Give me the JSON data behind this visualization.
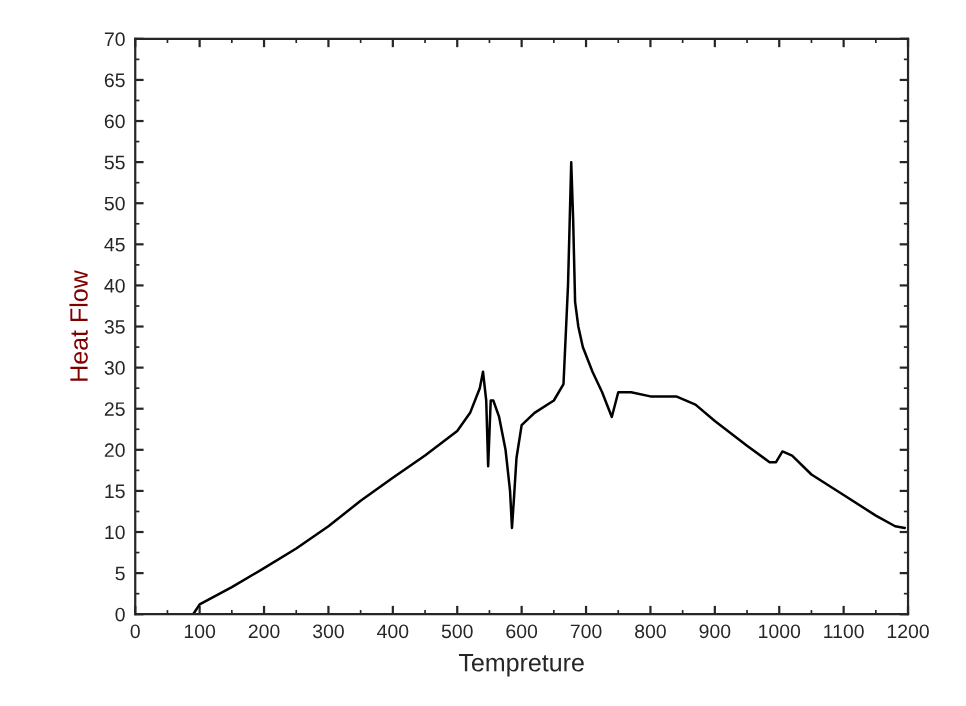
{
  "chart_data": {
    "type": "line",
    "xlabel": "Tempreture",
    "ylabel": "Heat Flow",
    "series": [
      {
        "color": "#000000",
        "x": [
          90,
          100,
          150,
          200,
          250,
          300,
          350,
          400,
          450,
          500,
          520,
          535,
          540,
          545,
          548,
          552,
          556,
          565,
          575,
          582,
          585,
          588,
          592,
          600,
          620,
          650,
          665,
          672,
          677,
          680,
          683,
          688,
          695,
          710,
          725,
          740,
          750,
          770,
          800,
          840,
          870,
          900,
          950,
          985,
          995,
          1005,
          1020,
          1050,
          1100,
          1150,
          1180,
          1195
        ],
        "values": [
          0,
          1.2,
          3.3,
          5.6,
          8,
          10.7,
          13.8,
          16.6,
          19.3,
          22.3,
          24.5,
          27.5,
          29.5,
          26,
          18,
          26,
          26,
          24,
          20,
          15,
          10.5,
          14,
          19,
          23,
          24.5,
          26,
          28,
          40,
          55,
          48,
          38,
          35,
          32.5,
          29.5,
          27,
          24,
          27,
          27,
          26.5,
          26.5,
          25.5,
          23.5,
          20.5,
          18.5,
          18.5,
          19.8,
          19.3,
          17,
          14.5,
          12,
          10.7,
          10.5
        ]
      }
    ],
    "xlim": [
      0,
      1200
    ],
    "xticks": [
      0,
      100,
      200,
      300,
      400,
      500,
      600,
      700,
      800,
      900,
      1000,
      1100,
      1200
    ],
    "ylim": [
      0,
      70
    ],
    "yticks": [
      0,
      5,
      10,
      15,
      20,
      25,
      30,
      35,
      40,
      45,
      50,
      55,
      60,
      65,
      70
    ],
    "grid": false,
    "legend": false,
    "line_style": "solid",
    "marker": "none"
  }
}
